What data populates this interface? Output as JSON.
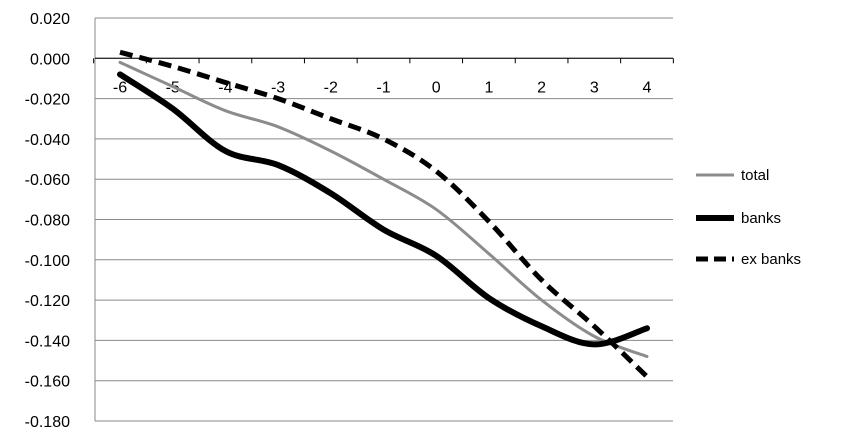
{
  "chart_data": {
    "type": "line",
    "title": "",
    "xlabel": "",
    "ylabel": "",
    "x": [
      -6,
      -5,
      -4,
      -3,
      -2,
      -1,
      0,
      1,
      2,
      3,
      4
    ],
    "x_tick_labels": [
      "-6",
      "-5",
      "-4",
      "-3",
      "-2",
      "-1",
      "0",
      "1",
      "2",
      "3",
      "4"
    ],
    "ylim": [
      -0.18,
      0.02
    ],
    "y_tick_labels": [
      "0.020",
      "0.000",
      "-0.020",
      "-0.040",
      "-0.060",
      "-0.080",
      "-0.100",
      "-0.120",
      "-0.140",
      "-0.160",
      "-0.180"
    ],
    "y_tick_values": [
      0.02,
      0.0,
      -0.02,
      -0.04,
      -0.06,
      -0.08,
      -0.1,
      -0.12,
      -0.14,
      -0.16,
      -0.18
    ],
    "grid": "horizontal",
    "legend_position": "right",
    "series": [
      {
        "name": "total",
        "color": "#8c8c8c",
        "style": "solid",
        "values": [
          -0.002,
          -0.014,
          -0.026,
          -0.034,
          -0.046,
          -0.06,
          -0.075,
          -0.097,
          -0.12,
          -0.138,
          -0.148
        ]
      },
      {
        "name": "banks",
        "color": "#000000",
        "style": "solid-thick",
        "values": [
          -0.008,
          -0.025,
          -0.046,
          -0.053,
          -0.067,
          -0.085,
          -0.098,
          -0.119,
          -0.133,
          -0.142,
          -0.134
        ]
      },
      {
        "name": "ex banks",
        "color": "#000000",
        "style": "dashed",
        "values": [
          0.003,
          -0.004,
          -0.012,
          -0.02,
          -0.03,
          -0.04,
          -0.056,
          -0.081,
          -0.11,
          -0.133,
          -0.158
        ]
      }
    ]
  }
}
